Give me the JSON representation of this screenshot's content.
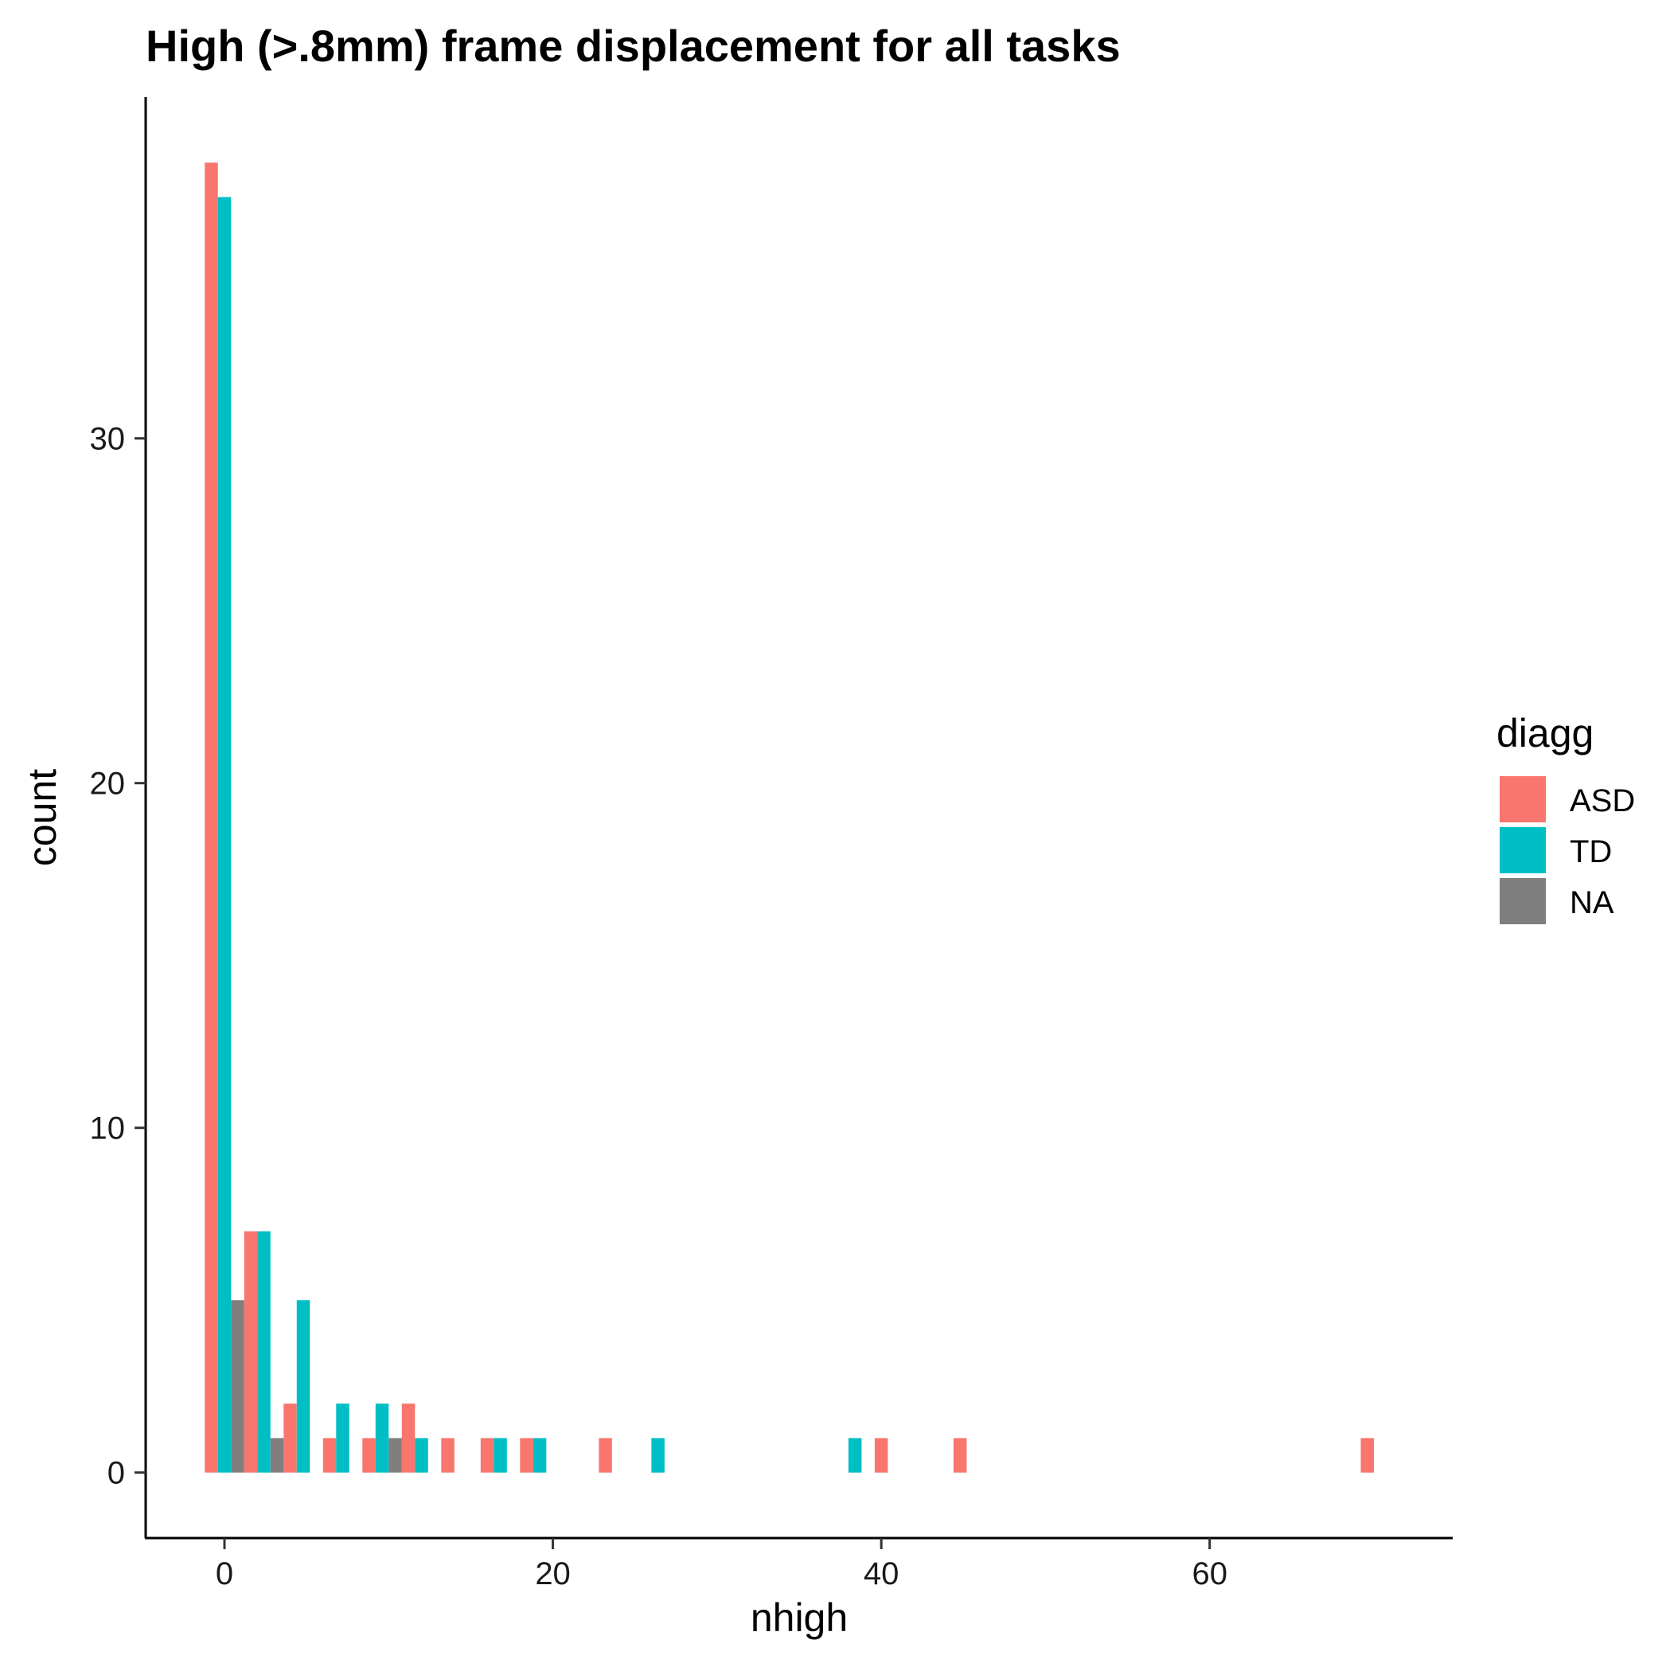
{
  "chart_data": {
    "type": "bar",
    "title": "High (>.8mm) frame displacement for all tasks",
    "xlabel": "nhigh",
    "ylabel": "count",
    "xlim": [
      -4.8,
      74.8
    ],
    "ylim": [
      -1.9,
      39.9
    ],
    "x_ticks": [
      0,
      20,
      40,
      60
    ],
    "y_ticks": [
      0,
      10,
      20,
      30
    ],
    "grid": false,
    "legend": {
      "title": "diagg",
      "position": "right",
      "entries": [
        "ASD",
        "TD",
        "NA"
      ]
    },
    "bin_width": 2.4,
    "series": [
      {
        "name": "ASD",
        "color": "#F8766D",
        "x": [
          -0.8,
          1.6,
          4.0,
          6.4,
          8.8,
          11.2,
          13.6,
          16.0,
          18.4,
          23.2,
          40.0,
          44.8,
          69.6
        ],
        "values": [
          38,
          7,
          2,
          1,
          1,
          2,
          1,
          1,
          1,
          1,
          1,
          1,
          1
        ]
      },
      {
        "name": "TD",
        "color": "#00BFC4",
        "x": [
          0.0,
          2.4,
          4.8,
          7.2,
          9.6,
          12.0,
          16.8,
          19.2,
          26.4,
          38.4
        ],
        "values": [
          37,
          7,
          5,
          2,
          2,
          1,
          1,
          1,
          1,
          1
        ]
      },
      {
        "name": "NA",
        "color": "#7F7F7F",
        "x": [
          0.8,
          3.2,
          10.4
        ],
        "values": [
          5,
          1,
          1
        ]
      }
    ]
  }
}
